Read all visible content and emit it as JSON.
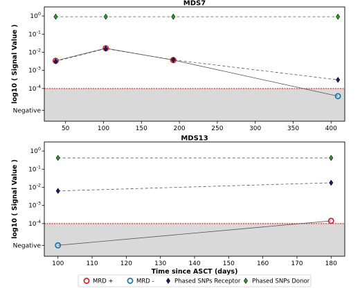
{
  "chart_data": [
    {
      "type": "scatter",
      "title": "MDS7",
      "xlabel": "",
      "ylabel": "log10 ( Signal Value )",
      "xlim": [
        22,
        418
      ],
      "xticks": [
        50,
        100,
        150,
        200,
        250,
        300,
        350,
        400
      ],
      "yticks": [
        {
          "value": 0,
          "label": "10",
          "exp": "0"
        },
        {
          "value": -1,
          "label": "10",
          "exp": "-1"
        },
        {
          "value": -2,
          "label": "10",
          "exp": "-2"
        },
        {
          "value": -3,
          "label": "10",
          "exp": "-3"
        },
        {
          "value": -4,
          "label": "10",
          "exp": "-4"
        },
        {
          "value": -5.2,
          "label": "Negative",
          "exp": ""
        }
      ],
      "ylim": [
        -5.8,
        0.5
      ],
      "threshold": -4,
      "negative_floor": -4,
      "series": [
        {
          "key": "mrd_pos",
          "x": [
            37,
            103,
            192
          ],
          "y": [
            -2.47,
            -1.78,
            -2.43
          ]
        },
        {
          "key": "mrd_neg",
          "x": [
            409
          ],
          "y": [
            -4.42
          ]
        },
        {
          "key": "snp_receptor",
          "x": [
            37,
            103,
            192,
            409
          ],
          "y": [
            -2.5,
            -1.8,
            -2.42,
            -3.52
          ]
        },
        {
          "key": "snp_donor",
          "x": [
            37,
            103,
            192,
            409
          ],
          "y": [
            -0.04,
            -0.04,
            -0.04,
            -0.04
          ]
        }
      ],
      "mrd_line": {
        "x": [
          37,
          103,
          192,
          409
        ],
        "y": [
          -2.47,
          -1.78,
          -2.43,
          -4.42
        ]
      },
      "receptor_line": {
        "x": [
          37,
          103,
          192,
          409
        ],
        "y": [
          -2.5,
          -1.8,
          -2.42,
          -3.52
        ]
      },
      "donor_line": {
        "x": [
          37,
          103,
          192,
          409
        ],
        "y": [
          -0.04,
          -0.04,
          -0.04,
          -0.04
        ]
      }
    },
    {
      "type": "scatter",
      "title": "MDS13",
      "xlabel": "Time since ASCT (days)",
      "ylabel": "log10 ( Signal Value )",
      "xlim": [
        96,
        184
      ],
      "xticks": [
        100,
        110,
        120,
        130,
        140,
        150,
        160,
        170,
        180
      ],
      "yticks": [
        {
          "value": 0,
          "label": "10",
          "exp": "0"
        },
        {
          "value": -1,
          "label": "10",
          "exp": "-1"
        },
        {
          "value": -2,
          "label": "10",
          "exp": "-2"
        },
        {
          "value": -3,
          "label": "10",
          "exp": "-3"
        },
        {
          "value": -4,
          "label": "10",
          "exp": "-4"
        },
        {
          "value": -5.2,
          "label": "Negative",
          "exp": ""
        }
      ],
      "ylim": [
        -5.8,
        0.5
      ],
      "threshold": -4,
      "negative_floor": -4,
      "series": [
        {
          "key": "mrd_pos",
          "x": [
            180
          ],
          "y": [
            -3.85
          ]
        },
        {
          "key": "mrd_neg",
          "x": [
            100
          ],
          "y": [
            -5.2
          ]
        },
        {
          "key": "snp_receptor",
          "x": [
            100,
            180
          ],
          "y": [
            -2.2,
            -1.75
          ]
        },
        {
          "key": "snp_donor",
          "x": [
            100,
            180
          ],
          "y": [
            -0.38,
            -0.38
          ]
        }
      ],
      "mrd_line": {
        "x": [
          100,
          180
        ],
        "y": [
          -5.2,
          -3.85
        ]
      },
      "receptor_line": {
        "x": [
          100,
          180
        ],
        "y": [
          -2.2,
          -1.75
        ]
      },
      "donor_line": {
        "x": [
          100,
          180
        ],
        "y": [
          -0.38,
          -0.38
        ]
      }
    }
  ],
  "legend": {
    "placement": "bottom-center",
    "items": [
      {
        "key": "mrd_pos",
        "label": "MRD +"
      },
      {
        "key": "mrd_neg",
        "label": "MRD -"
      },
      {
        "key": "snp_receptor",
        "label": "Phased SNPs Receptor"
      },
      {
        "key": "snp_donor",
        "label": "Phased SNPs Donor"
      }
    ]
  },
  "colors": {
    "mrd_pos": "#d62728",
    "mrd_neg": "#1f77b4",
    "snp_receptor": "#1a1a7a",
    "snp_donor": "#2ca02c",
    "threshold": "#e03030",
    "negative_region": "#d9d9d9",
    "line": "#555555"
  }
}
